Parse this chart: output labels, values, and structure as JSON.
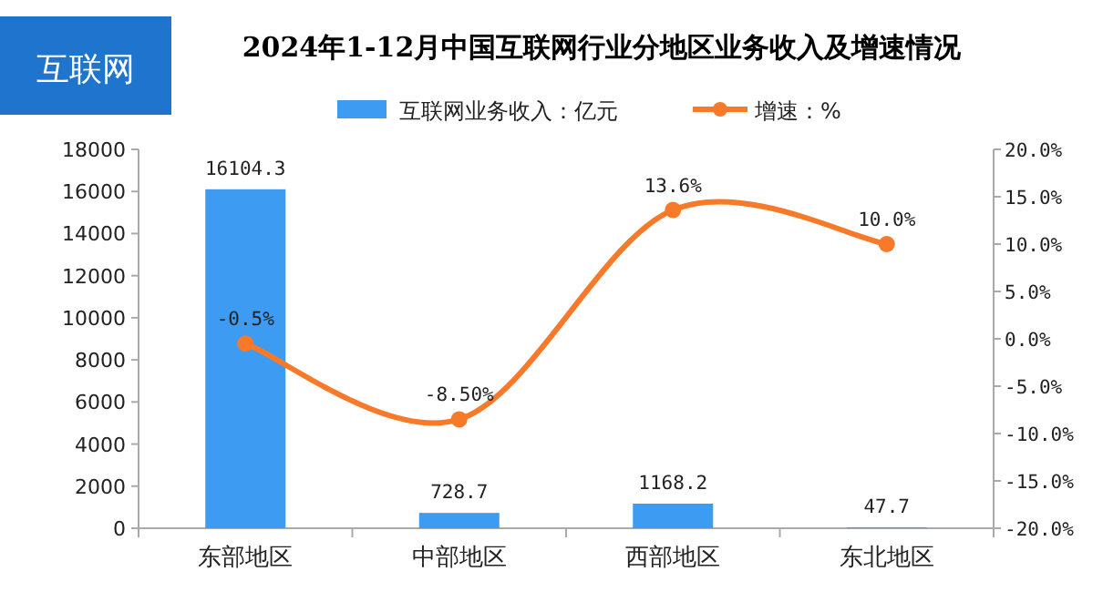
{
  "chart_data": {
    "type": "bar",
    "title": "2024年1-12月中国互联网行业分地区业务收入及增速情况",
    "annotations": [
      "互联网"
    ],
    "categories": [
      "东部地区",
      "中部地区",
      "西部地区",
      "东北地区"
    ],
    "series": [
      {
        "name": "互联网业务收入：亿元",
        "color": "#3d9bf2",
        "values": [
          16104.3,
          728.7,
          1168.2,
          47.7
        ],
        "value_labels": [
          "16104.3",
          "728.7",
          "1168.2",
          "47.7"
        ]
      },
      {
        "name": "增速：%",
        "type": "line",
        "axis": "y2",
        "color": "#f77a2a",
        "values": [
          -0.5,
          -8.5,
          13.6,
          10.0
        ],
        "value_labels": [
          "-0.5%",
          "-8.50%",
          "13.6%",
          "10.0%"
        ]
      }
    ],
    "ylim": [
      0,
      18000
    ],
    "yticks": [
      0,
      2000,
      4000,
      6000,
      8000,
      10000,
      12000,
      14000,
      16000,
      18000
    ],
    "y2lim": [
      -20,
      20
    ],
    "y2ticks": [
      {
        "value": 20,
        "label": "20.0%"
      },
      {
        "value": 15,
        "label": "15.0%"
      },
      {
        "value": 10,
        "label": "10.0%"
      },
      {
        "value": 5,
        "label": "5.0%"
      },
      {
        "value": 0,
        "label": "0.0%"
      },
      {
        "value": -5,
        "label": "-5.0%"
      },
      {
        "value": -10,
        "label": "-10.0%"
      },
      {
        "value": -15,
        "label": "-15.0%"
      },
      {
        "value": -20,
        "label": "-20.0%"
      }
    ],
    "marker": "circle",
    "legend": "top"
  }
}
